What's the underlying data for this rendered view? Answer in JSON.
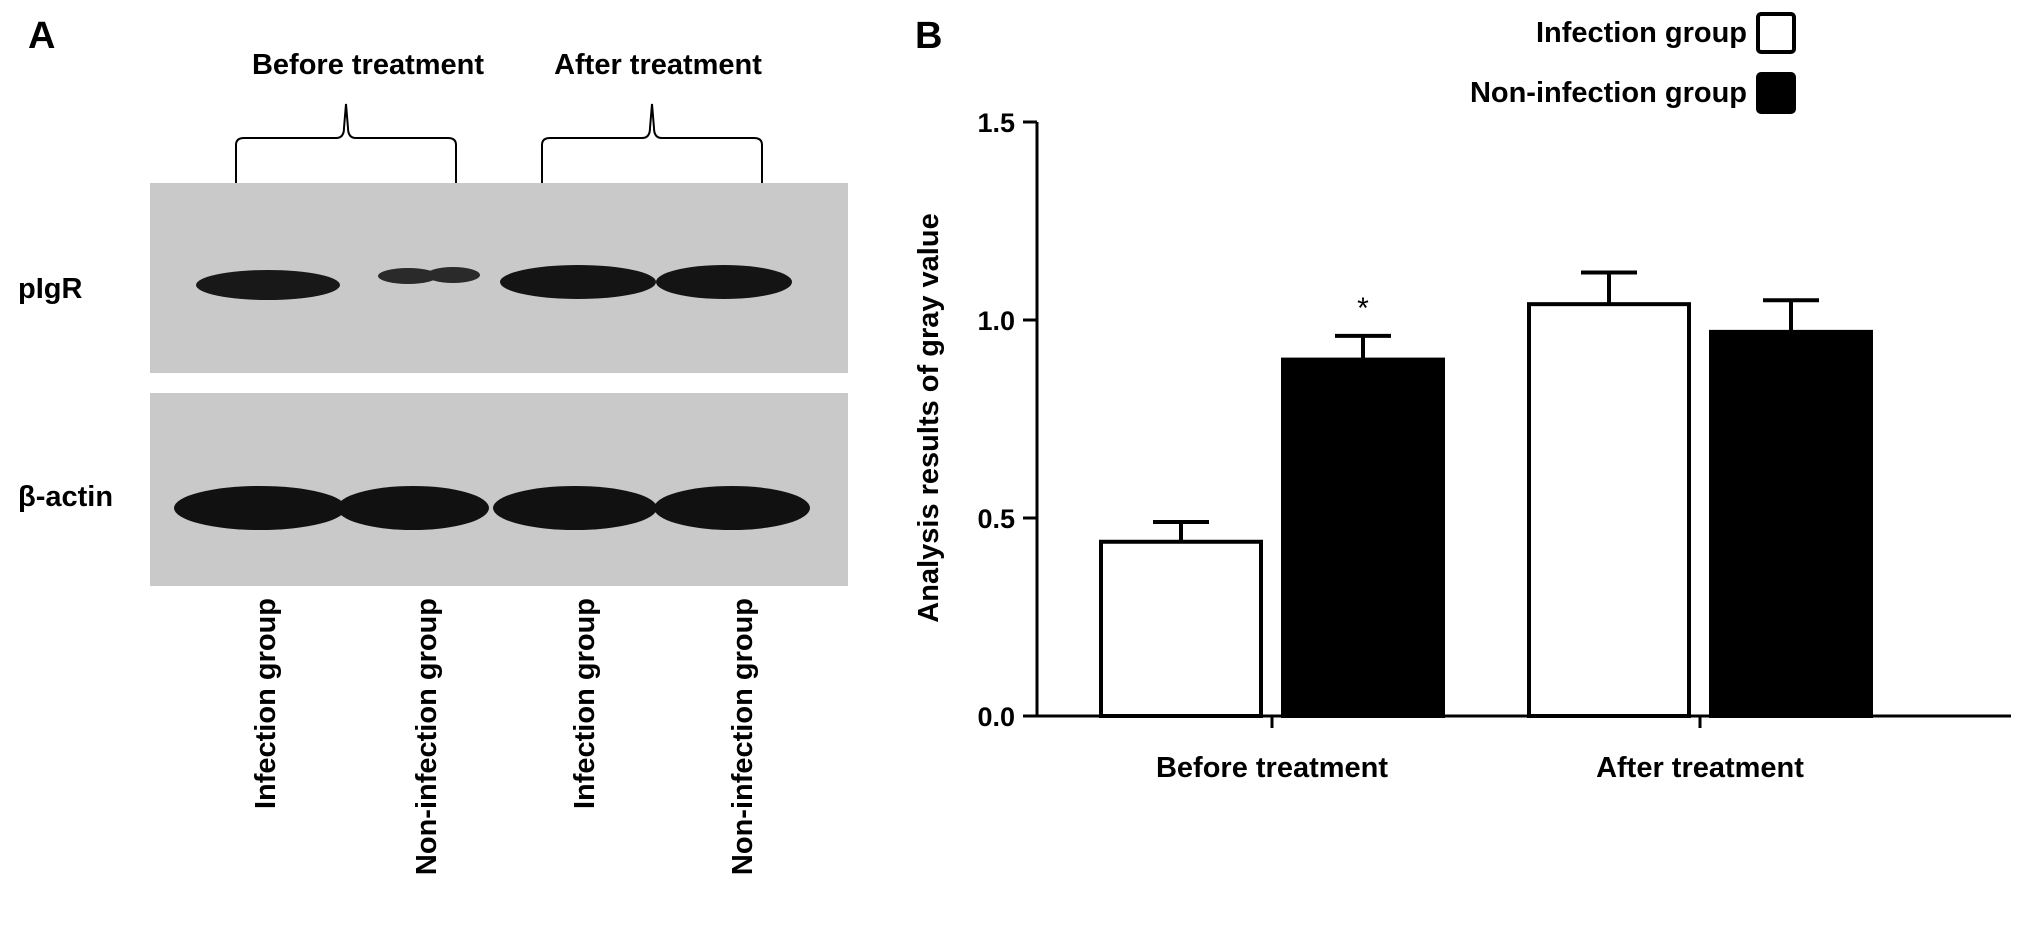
{
  "panel_a": {
    "letter": "A",
    "group_labels": [
      "Before treatment",
      "After treatment"
    ],
    "row_labels": [
      "pIgR",
      "β-actin"
    ],
    "lane_labels": [
      "Infection group",
      "Non-infection group",
      "Infection group",
      "Non-infection group"
    ]
  },
  "panel_b": {
    "letter": "B"
  },
  "chart_data": {
    "type": "bar",
    "categories": [
      "Before treatment",
      "After treatment"
    ],
    "series": [
      {
        "name": "Infection group",
        "values": [
          0.44,
          1.04
        ],
        "errors": [
          0.05,
          0.08
        ],
        "fill": "#ffffff"
      },
      {
        "name": "Non-infection group",
        "values": [
          0.9,
          0.97
        ],
        "errors": [
          0.06,
          0.08
        ],
        "fill": "#000000"
      }
    ],
    "ylabel": "Analysis results of gray value",
    "ylim": [
      0,
      1.5
    ],
    "yticks": [
      "0.0",
      "0.5",
      "1.0",
      "1.5"
    ],
    "annotations": [
      {
        "category": "Before treatment",
        "series": "Non-infection group",
        "text": "*"
      }
    ],
    "legend_position": "top-right",
    "grid": false
  }
}
